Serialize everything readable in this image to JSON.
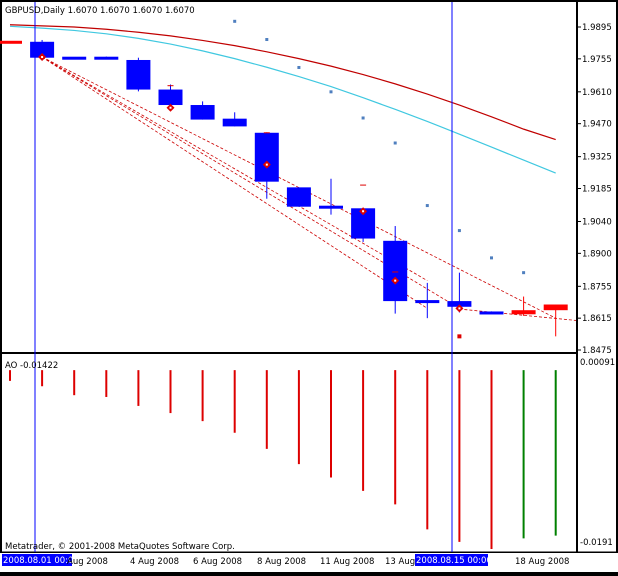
{
  "colors": {
    "background": "#000000",
    "plot_bg": "#ffffff",
    "candle": "#0000ff",
    "flat_candle": "#ff0000",
    "ma_slow": "#c00000",
    "ma_fast": "#40c8e0",
    "psar": "#4f7fbf",
    "fractal": "#dd0000",
    "trend": "#cc0000",
    "crosshair": "#0000ff",
    "ao_down": "#dd0000",
    "ao_up": "#008000"
  },
  "chart_data": [
    {
      "type": "candlestick",
      "title": "GBPUSD,Daily  1.6070 1.6070 1.6070 1.6070",
      "symbol": "GBPUSD",
      "timeframe": "Daily",
      "ohlc_readout": [
        "1.6070",
        "1.6070",
        "1.6070",
        "1.6070"
      ],
      "ylim": [
        1.8425,
        1.9975
      ],
      "y_ticks": [
        "1.9895",
        "1.9755",
        "1.9610",
        "1.9470",
        "1.9325",
        "1.9185",
        "1.9040",
        "1.8900",
        "1.8755",
        "1.8615",
        "1.8475"
      ],
      "x_labels": [
        "2008.08.01 00:00",
        "Aug 2008",
        "4 Aug 2008",
        "6 Aug 2008",
        "8 Aug 2008",
        "11 Aug 2008",
        "13 Aug 2008",
        "2008.08.15 00:00",
        "18 Aug 2008"
      ],
      "candles": [
        {
          "o": 1.983,
          "h": 1.983,
          "l": 1.9825,
          "c": 1.9825
        },
        {
          "o": 1.983,
          "h": 1.9838,
          "l": 1.976,
          "c": 1.976
        },
        {
          "o": 1.976,
          "h": 1.976,
          "l": 1.976,
          "c": 1.976
        },
        {
          "o": 1.976,
          "h": 1.9765,
          "l": 1.9755,
          "c": 1.9755
        },
        {
          "o": 1.975,
          "h": 1.976,
          "l": 1.9612,
          "c": 1.962
        },
        {
          "o": 1.962,
          "h": 1.9642,
          "l": 1.9538,
          "c": 1.9552
        },
        {
          "o": 1.9552,
          "h": 1.9568,
          "l": 1.9488,
          "c": 1.9488
        },
        {
          "o": 1.9492,
          "h": 1.952,
          "l": 1.9458,
          "c": 1.9458
        },
        {
          "o": 1.943,
          "h": 1.9432,
          "l": 1.914,
          "c": 1.9215
        },
        {
          "o": 1.919,
          "h": 1.919,
          "l": 1.9105,
          "c": 1.9105
        },
        {
          "o": 1.9105,
          "h": 1.9228,
          "l": 1.907,
          "c": 1.9098
        },
        {
          "o": 1.9098,
          "h": 1.91,
          "l": 1.895,
          "c": 1.8965
        },
        {
          "o": 1.8955,
          "h": 1.902,
          "l": 1.8635,
          "c": 1.869
        },
        {
          "o": 1.869,
          "h": 1.877,
          "l": 1.8615,
          "c": 1.869
        },
        {
          "o": 1.869,
          "h": 1.8815,
          "l": 1.864,
          "c": 1.8665
        },
        {
          "o": 1.864,
          "h": 1.8645,
          "l": 1.864,
          "c": 1.864
        },
        {
          "o": 1.865,
          "h": 1.871,
          "l": 1.8625,
          "c": 1.8632
        },
        {
          "o": 1.8675,
          "h": 1.8675,
          "l": 1.8535,
          "c": 1.865
        }
      ],
      "ma_slow": [
        1.9905,
        1.99,
        1.9895,
        1.9885,
        1.9872,
        1.9856,
        1.9836,
        1.9813,
        1.9786,
        1.9756,
        1.9723,
        1.9686,
        1.9645,
        1.96,
        1.9552,
        1.95,
        1.9446,
        1.94
      ],
      "ma_fast": [
        1.9898,
        1.989,
        1.988,
        1.9865,
        1.9845,
        1.982,
        1.979,
        1.9756,
        1.9718,
        1.9677,
        1.9633,
        1.9584,
        1.9533,
        1.948,
        1.9424,
        1.9367,
        1.931,
        1.9253
      ],
      "psar": [
        null,
        null,
        null,
        null,
        null,
        null,
        null,
        1.992,
        1.984,
        1.9717,
        1.961,
        1.9495,
        1.9385,
        1.911,
        1.9,
        1.888,
        1.8815,
        null
      ],
      "fractal_markers": [
        1.9763,
        1.954,
        1.929,
        1.9085,
        1.878,
        1.8658
      ],
      "fractal_dashes": [
        1.9637,
        1.943,
        1.92,
        1.8818
      ],
      "dot_markers": [
        1.8535
      ]
    },
    {
      "type": "bar",
      "title": "AO -0.01422",
      "indicator": "AO",
      "readout": "-0.01422",
      "y_ticks": [
        "0.00091",
        "-0.0191"
      ],
      "ylim": [
        -0.021,
        0.00091
      ],
      "values": [
        -0.0012,
        -0.0018,
        -0.0028,
        -0.003,
        -0.004,
        -0.0048,
        -0.0057,
        -0.007,
        -0.0088,
        -0.0105,
        -0.012,
        -0.0135,
        -0.015,
        -0.0178,
        -0.0192,
        -0.02,
        -0.0188,
        -0.0185
      ],
      "colors": [
        "down",
        "down",
        "down",
        "down",
        "down",
        "down",
        "down",
        "down",
        "down",
        "down",
        "down",
        "down",
        "down",
        "down",
        "down",
        "down",
        "up",
        "up"
      ]
    }
  ],
  "footer": {
    "copyright": "Metatrader, © 2001-2008 MetaQuotes Software Corp."
  }
}
